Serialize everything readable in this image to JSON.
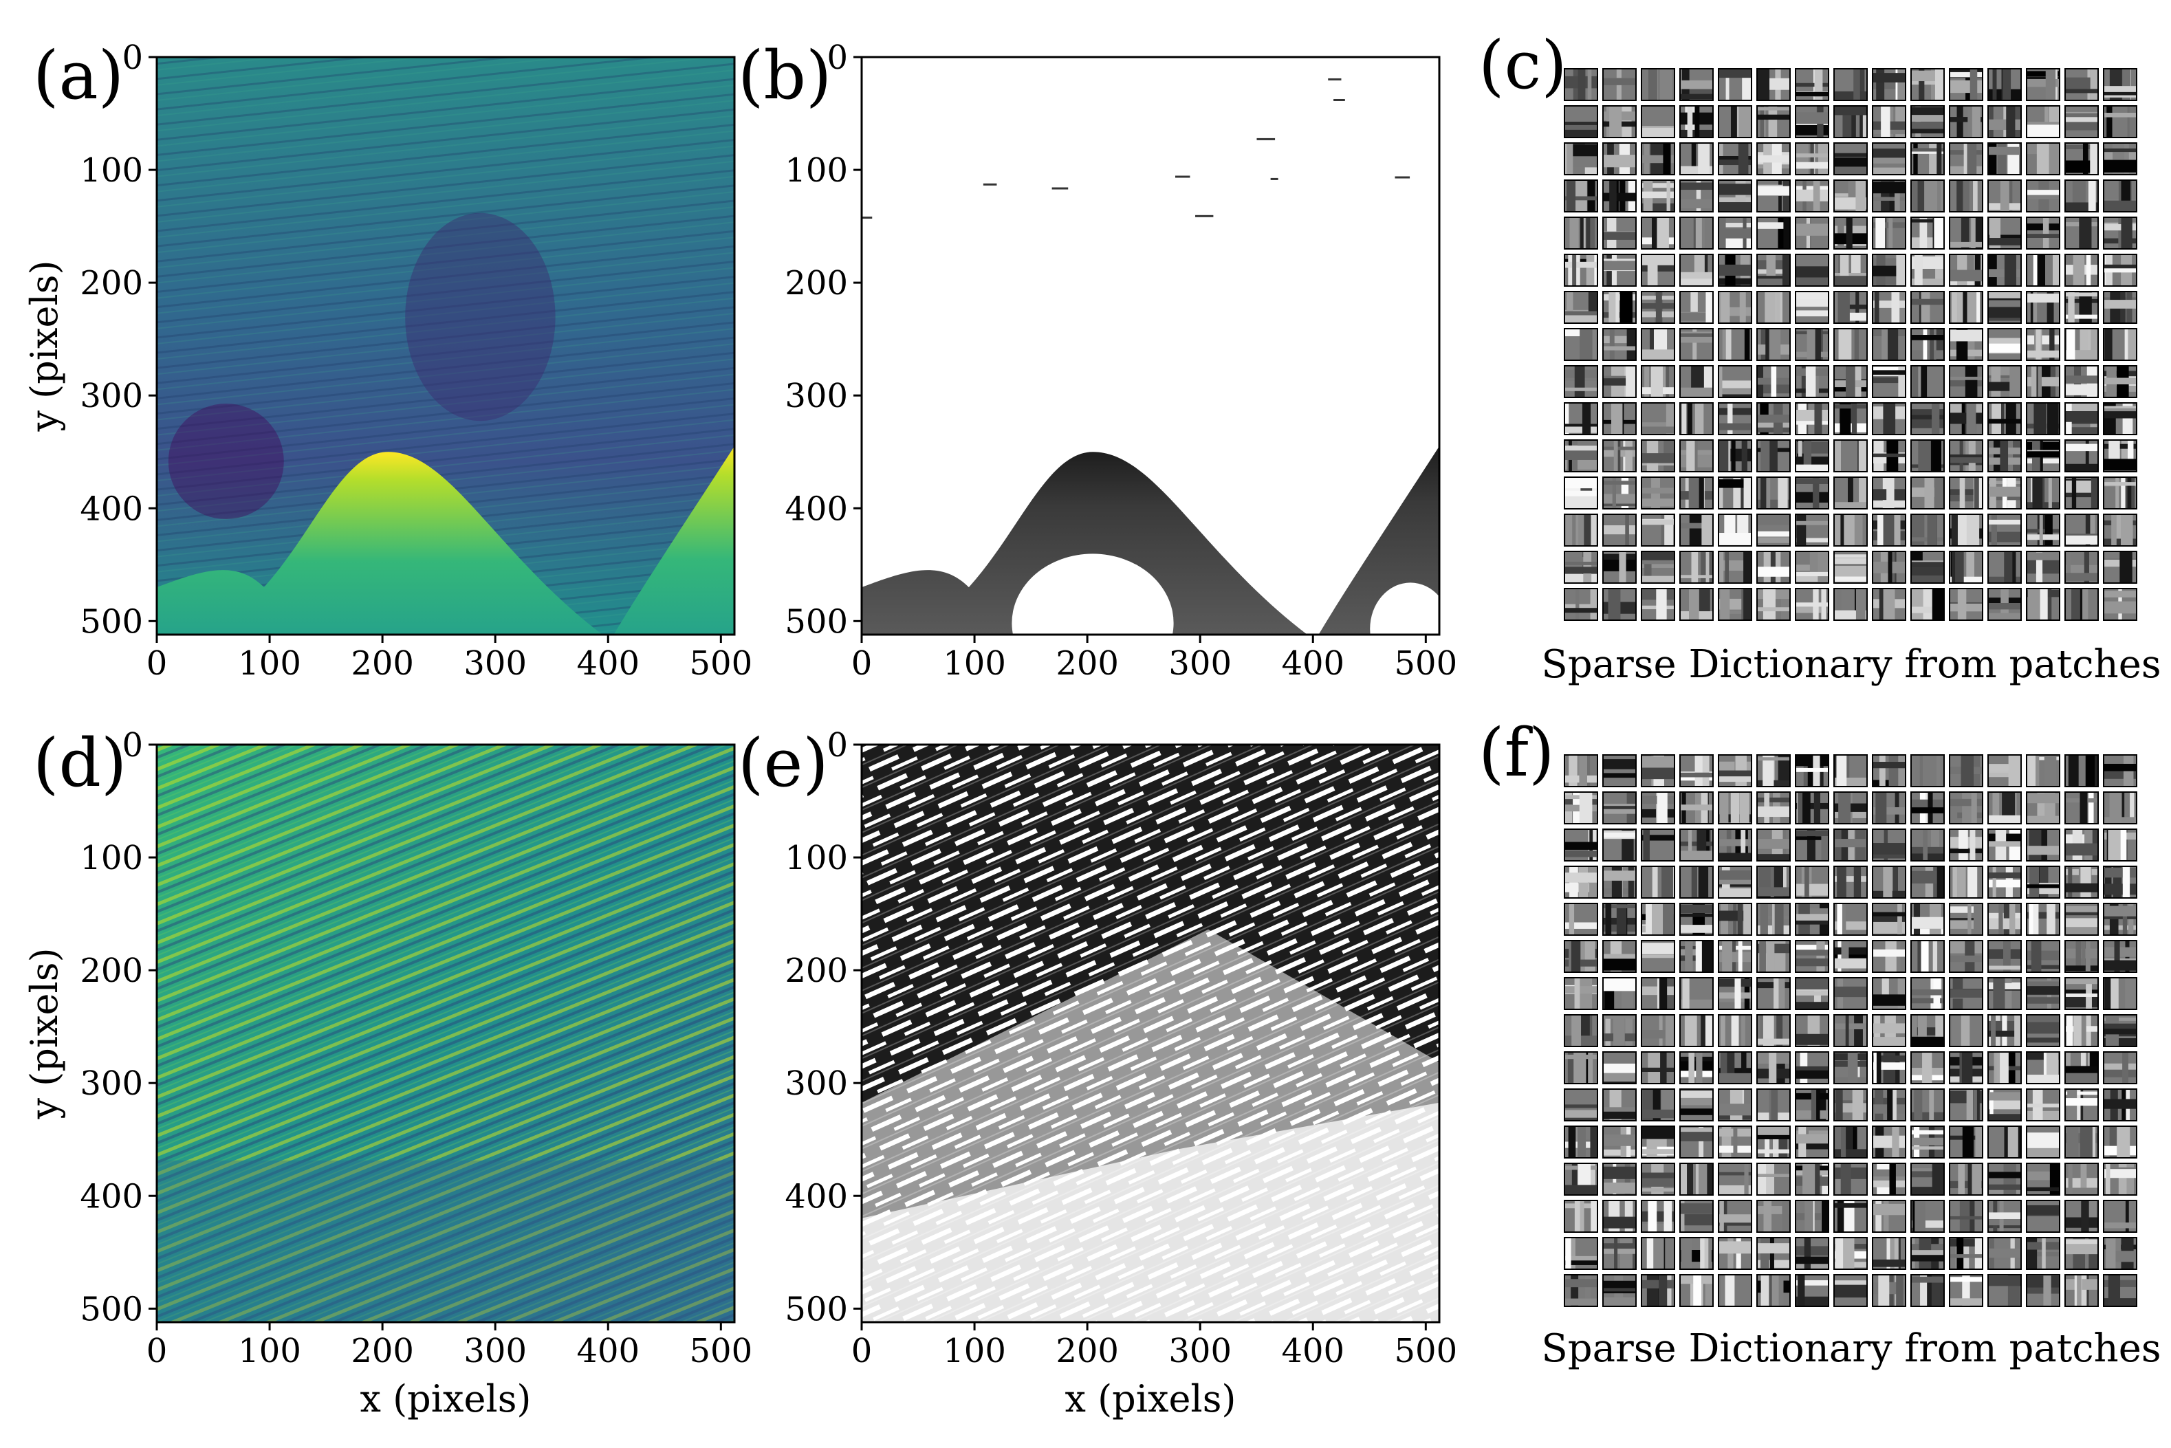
{
  "figure": {
    "captions": {
      "c": "Sparse Dictionary from patches",
      "f": "Sparse Dictionary from patches"
    }
  },
  "chart_data": [
    {
      "id": "a",
      "type": "heatmap",
      "panel_label": "(a)",
      "title": "",
      "colormap": "viridis",
      "content": "seismic image with curved salt-body boundary",
      "xlabel": "",
      "ylabel": "y (pixels)",
      "xlim": [
        0,
        512
      ],
      "ylim": [
        512,
        0
      ],
      "xticks": [
        0,
        100,
        200,
        300,
        400,
        500
      ],
      "yticks": [
        0,
        100,
        200,
        300,
        400,
        500
      ],
      "xtick_labels": [
        "0",
        "100",
        "200",
        "300",
        "400",
        "500"
      ],
      "ytick_labels": [
        "0",
        "100",
        "200",
        "300",
        "400",
        "500"
      ]
    },
    {
      "id": "b",
      "type": "heatmap",
      "panel_label": "(b)",
      "title": "",
      "colormap": "gray",
      "content": "binary segmentation of salt-body boundary",
      "xlabel": "",
      "ylabel": "",
      "xlim": [
        0,
        512
      ],
      "ylim": [
        512,
        0
      ],
      "xticks": [
        0,
        100,
        200,
        300,
        400,
        500
      ],
      "yticks": [
        0,
        100,
        200,
        300,
        400,
        500
      ],
      "xtick_labels": [
        "0",
        "100",
        "200",
        "300",
        "400",
        "500"
      ],
      "ytick_labels": [
        "0",
        "100",
        "200",
        "300",
        "400",
        "500"
      ]
    },
    {
      "id": "c",
      "type": "image-grid",
      "panel_label": "(c)",
      "caption": "Sparse Dictionary from patches",
      "rows": 15,
      "cols": 15
    },
    {
      "id": "d",
      "type": "heatmap",
      "panel_label": "(d)",
      "title": "",
      "colormap": "viridis",
      "content": "seismic image with dipping stratified layers",
      "xlabel": "x (pixels)",
      "ylabel": "y (pixels)",
      "xlim": [
        0,
        512
      ],
      "ylim": [
        512,
        0
      ],
      "xticks": [
        0,
        100,
        200,
        300,
        400,
        500
      ],
      "yticks": [
        0,
        100,
        200,
        300,
        400,
        500
      ],
      "xtick_labels": [
        "0",
        "100",
        "200",
        "300",
        "400",
        "500"
      ],
      "ytick_labels": [
        "0",
        "100",
        "200",
        "300",
        "400",
        "500"
      ]
    },
    {
      "id": "e",
      "type": "heatmap",
      "panel_label": "(e)",
      "title": "",
      "colormap": "gray",
      "content": "binary segmentation of stratified layers",
      "xlabel": "x (pixels)",
      "ylabel": "",
      "xlim": [
        0,
        512
      ],
      "ylim": [
        512,
        0
      ],
      "xticks": [
        0,
        100,
        200,
        300,
        400,
        500
      ],
      "yticks": [
        0,
        100,
        200,
        300,
        400,
        500
      ],
      "xtick_labels": [
        "0",
        "100",
        "200",
        "300",
        "400",
        "500"
      ],
      "ytick_labels": [
        "0",
        "100",
        "200",
        "300",
        "400",
        "500"
      ]
    },
    {
      "id": "f",
      "type": "image-grid",
      "panel_label": "(f)",
      "caption": "Sparse Dictionary from patches",
      "rows": 15,
      "cols": 15
    }
  ]
}
